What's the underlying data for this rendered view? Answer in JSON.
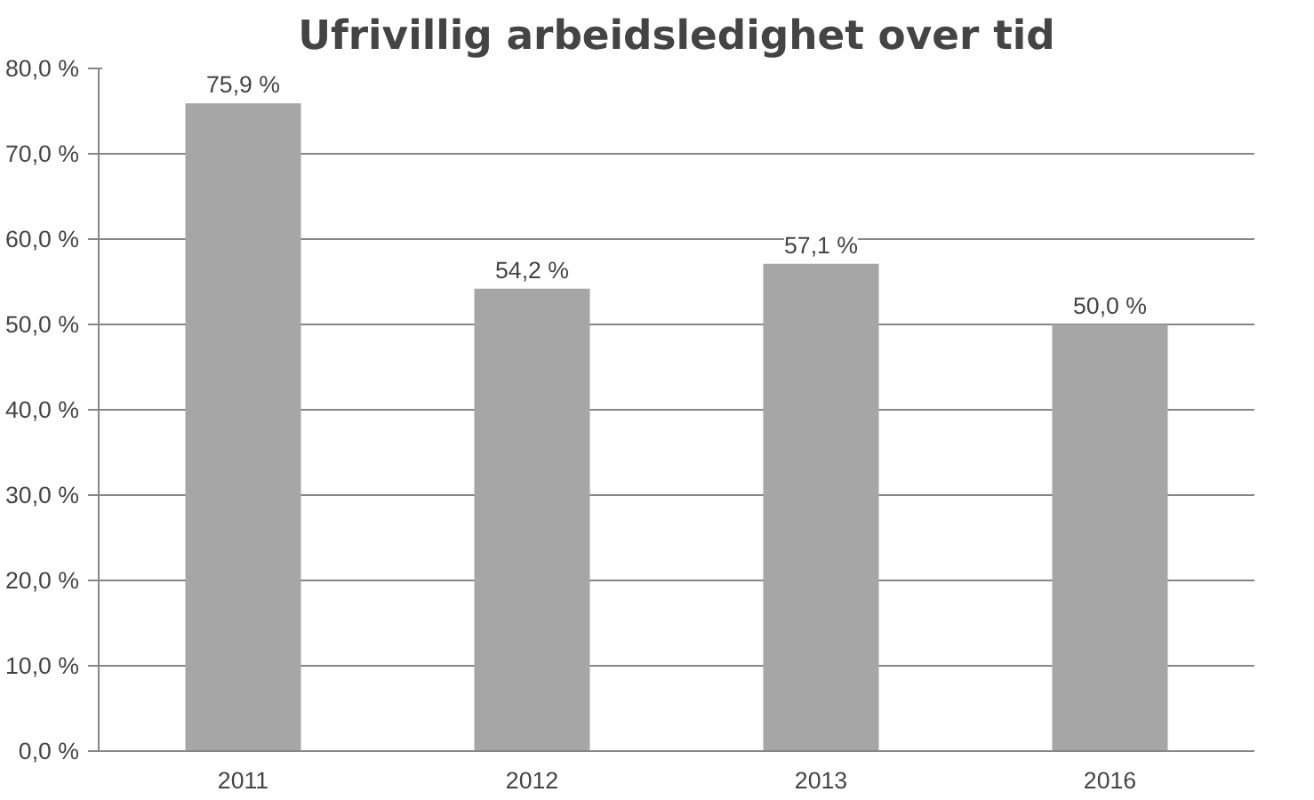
{
  "chart_data": {
    "type": "bar",
    "title": "Ufrivillig arbeidsledighet over tid",
    "categories": [
      "2011",
      "2012",
      "2013",
      "2016"
    ],
    "values": [
      75.9,
      54.2,
      57.1,
      50.0
    ],
    "value_labels": [
      "75,9 %",
      "54,2 %",
      "57,1 %",
      "50,0 %"
    ],
    "color": "#a6a6a6",
    "ylim": [
      0,
      80
    ],
    "yticks": [
      {
        "value": 0,
        "label": "0,0 %"
      },
      {
        "value": 10,
        "label": "10,0 %"
      },
      {
        "value": 20,
        "label": "20,0 %"
      },
      {
        "value": 30,
        "label": "30,0 %"
      },
      {
        "value": 40,
        "label": "40,0 %"
      },
      {
        "value": 50,
        "label": "50,0 %"
      },
      {
        "value": 60,
        "label": "60,0 %"
      },
      {
        "value": 70,
        "label": "70,0 %"
      },
      {
        "value": 80,
        "label": "80,0 %"
      }
    ],
    "grid": "y"
  }
}
